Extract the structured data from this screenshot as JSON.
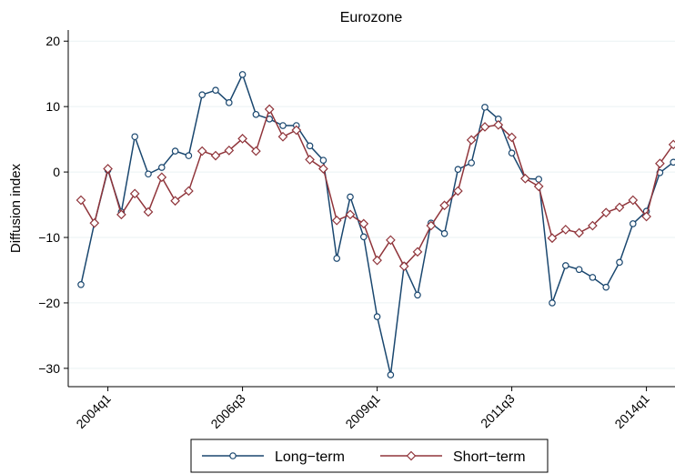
{
  "chart_data": {
    "type": "line",
    "title": "Eurozone",
    "y_label": "Diffusion index",
    "categories": [
      null,
      null,
      "2004q1",
      null,
      null,
      null,
      null,
      null,
      null,
      null,
      null,
      null,
      "2006q3",
      null,
      null,
      null,
      null,
      null,
      null,
      null,
      null,
      null,
      "2009q1",
      null,
      null,
      null,
      null,
      null,
      null,
      null,
      null,
      null,
      "2011q3",
      null,
      null,
      null,
      null,
      null,
      null,
      null,
      null,
      null,
      "2014q1",
      null,
      null
    ],
    "series": [
      {
        "name": "Long−term",
        "color": "#1a476f",
        "marker": "circle",
        "values": [
          -17.2,
          -7.8,
          0.3,
          -6.1,
          5.4,
          -0.3,
          0.7,
          3.2,
          2.5,
          11.8,
          12.5,
          10.6,
          14.9,
          8.8,
          8.1,
          7.1,
          7.1,
          4.0,
          1.8,
          -13.2,
          -3.8,
          -9.9,
          -22.1,
          -31.0,
          -14.3,
          -18.8,
          -7.8,
          -9.4,
          0.4,
          1.4,
          9.9,
          8.1,
          2.9,
          -1.0,
          -1.1,
          -20.0,
          -14.3,
          -14.9,
          -16.1,
          -17.6,
          -13.8,
          -7.9,
          -6.0,
          -0.1,
          1.5
        ]
      },
      {
        "name": "Short−term",
        "color": "#90353b",
        "marker": "diamond",
        "values": [
          -4.3,
          -7.8,
          0.5,
          -6.5,
          -3.3,
          -6.1,
          -0.8,
          -4.4,
          -2.9,
          3.2,
          2.5,
          3.3,
          5.1,
          3.2,
          9.6,
          5.4,
          6.4,
          1.9,
          0.5,
          -7.4,
          -6.5,
          -7.9,
          -13.5,
          -10.4,
          -14.4,
          -12.2,
          -8.2,
          -5.1,
          -2.9,
          4.9,
          6.9,
          7.2,
          5.3,
          -1.0,
          -2.2,
          -10.1,
          -8.8,
          -9.3,
          -8.2,
          -6.2,
          -5.4,
          -4.3,
          -6.8,
          1.3,
          4.2
        ]
      }
    ],
    "ylim": [
      -32.8,
      21.7
    ],
    "yticks": [
      {
        "value": -30,
        "label": "−30"
      },
      {
        "value": -20,
        "label": "−20"
      },
      {
        "value": -10,
        "label": "−10"
      },
      0,
      10,
      20
    ],
    "grid": true,
    "legend": "bottom"
  }
}
